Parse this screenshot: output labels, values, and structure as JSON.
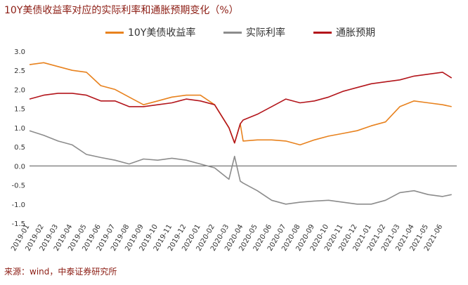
{
  "title": "10Y美债收益率对应的实际利率和通胀预期变化（%）",
  "source": "来源：wind，中泰证券研究所",
  "legend": [
    {
      "label": "10Y美债收益率",
      "color": "#e8821e"
    },
    {
      "label": "实际利率",
      "color": "#8c8c8c"
    },
    {
      "label": "通胀预期",
      "color": "#b3151b"
    }
  ],
  "chart_data": {
    "type": "line",
    "title": "10Y美债收益率对应的实际利率和通胀预期变化（%）",
    "ylim": [
      -1.5,
      3.0
    ],
    "yticks": [
      "3.0",
      "2.5",
      "2.0",
      "1.5",
      "1.0",
      "0.5",
      "0.0",
      "-0.5",
      "-1.0",
      "-1.5"
    ],
    "yticks_values": [
      3.0,
      2.5,
      2.0,
      1.5,
      1.0,
      0.5,
      0.0,
      -0.5,
      -1.0,
      -1.5
    ],
    "x_labels": [
      "2019-01",
      "2019-02",
      "2019-03",
      "2019-04",
      "2019-05",
      "2019-06",
      "2019-07",
      "2019-08",
      "2019-09",
      "2019-10",
      "2019-11",
      "2019-12",
      "2020-01",
      "2020-02",
      "2020-03",
      "2020-04",
      "2020-05",
      "2020-06",
      "2020-07",
      "2020-08",
      "2020-09",
      "2020-10",
      "2020-11",
      "2020-12",
      "2021-01",
      "2021-02",
      "2021-03",
      "2021-04",
      "2021-05",
      "2021-06"
    ],
    "x": [
      2019.0,
      2019.083,
      2019.167,
      2019.25,
      2019.333,
      2019.417,
      2019.5,
      2019.583,
      2019.667,
      2019.75,
      2019.833,
      2019.917,
      2020.0,
      2020.083,
      2020.167,
      2020.2,
      2020.233,
      2020.25,
      2020.333,
      2020.417,
      2020.5,
      2020.583,
      2020.667,
      2020.75,
      2020.833,
      2020.917,
      2021.0,
      2021.083,
      2021.167,
      2021.25,
      2021.333,
      2021.417,
      2021.47
    ],
    "series": [
      {
        "name": "10Y美债收益率",
        "color": "#e8821e",
        "values": [
          2.65,
          2.7,
          2.6,
          2.5,
          2.45,
          2.1,
          2.0,
          1.8,
          1.6,
          1.7,
          1.8,
          1.85,
          1.85,
          1.6,
          1.0,
          0.6,
          1.1,
          0.65,
          0.68,
          0.68,
          0.65,
          0.55,
          0.68,
          0.78,
          0.85,
          0.92,
          1.05,
          1.15,
          1.55,
          1.7,
          1.65,
          1.6,
          1.55
        ]
      },
      {
        "name": "实际利率",
        "color": "#8c8c8c",
        "values": [
          0.92,
          0.8,
          0.65,
          0.55,
          0.3,
          0.22,
          0.15,
          0.05,
          0.18,
          0.15,
          0.2,
          0.15,
          0.05,
          -0.05,
          -0.35,
          0.25,
          -0.4,
          -0.45,
          -0.65,
          -0.9,
          -1.0,
          -0.95,
          -0.92,
          -0.9,
          -0.95,
          -1.0,
          -1.0,
          -0.9,
          -0.7,
          -0.65,
          -0.75,
          -0.8,
          -0.75
        ]
      },
      {
        "name": "通胀预期",
        "color": "#b3151b",
        "values": [
          1.75,
          1.85,
          1.9,
          1.9,
          1.85,
          1.7,
          1.7,
          1.55,
          1.55,
          1.6,
          1.65,
          1.75,
          1.7,
          1.6,
          1.0,
          0.6,
          1.1,
          1.2,
          1.35,
          1.55,
          1.75,
          1.65,
          1.7,
          1.8,
          1.95,
          2.05,
          2.15,
          2.2,
          2.25,
          2.35,
          2.4,
          2.45,
          2.3
        ]
      }
    ]
  }
}
